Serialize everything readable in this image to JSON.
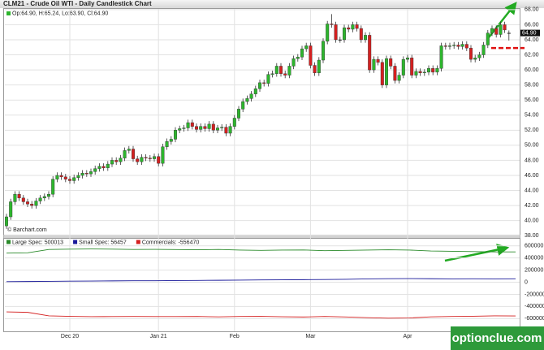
{
  "chart_data": [
    {
      "type": "candlestick",
      "title": "CLM21 - Crude Oil WTI - Daily Candlestick Chart",
      "ohlc_legend": "Op:64.90, H:65.24, Lo:63.90, Cl:64.90",
      "source": "© Barchart.com",
      "up_color": "#2db52d",
      "down_color": "#d42020",
      "categories": [
        null,
        null,
        null,
        null,
        null,
        null,
        null,
        null,
        null,
        null,
        null,
        null,
        null,
        null,
        null,
        "Dec 20",
        null,
        null,
        null,
        null,
        null,
        null,
        null,
        null,
        null,
        null,
        null,
        null,
        null,
        null,
        null,
        null,
        null,
        null,
        null,
        null,
        "Jan 21",
        null,
        null,
        null,
        null,
        null,
        null,
        null,
        null,
        null,
        null,
        null,
        null,
        null,
        null,
        null,
        null,
        null,
        "Feb",
        null,
        null,
        null,
        null,
        null,
        null,
        null,
        null,
        null,
        null,
        null,
        null,
        null,
        null,
        null,
        null,
        null,
        "Mar",
        null,
        null,
        null,
        null,
        null,
        null,
        null,
        null,
        null,
        null,
        null,
        null,
        null,
        null,
        null,
        null,
        null,
        null,
        null,
        null,
        null,
        null,
        "Apr",
        null,
        null,
        null,
        null,
        null,
        null,
        null,
        null,
        null,
        null,
        null,
        null,
        null,
        null,
        null,
        null,
        null,
        null,
        null,
        null,
        null,
        null,
        null,
        null
      ],
      "ohlc": [
        [
          39.3,
          40.9,
          38.9,
          40.5
        ],
        [
          40.5,
          42.9,
          40.1,
          42.5
        ],
        [
          42.5,
          43.9,
          42.1,
          43.5
        ],
        [
          43.5,
          43.9,
          42.6,
          43.0
        ],
        [
          43.0,
          43.4,
          42.1,
          42.5
        ],
        [
          42.5,
          42.9,
          41.8,
          42.2
        ],
        [
          42.2,
          42.6,
          41.6,
          42.0
        ],
        [
          42.0,
          43.0,
          41.6,
          42.6
        ],
        [
          42.6,
          43.4,
          42.2,
          43.0
        ],
        [
          43.0,
          43.6,
          42.6,
          43.2
        ],
        [
          43.2,
          43.9,
          42.8,
          43.5
        ],
        [
          43.5,
          45.9,
          43.1,
          45.5
        ],
        [
          45.5,
          46.4,
          45.1,
          46.0
        ],
        [
          46.0,
          46.4,
          45.4,
          45.8
        ],
        [
          45.8,
          46.2,
          45.1,
          45.5
        ],
        [
          45.5,
          45.9,
          44.9,
          45.3
        ],
        [
          45.3,
          46.1,
          44.9,
          45.7
        ],
        [
          45.7,
          46.4,
          45.3,
          46.0
        ],
        [
          46.0,
          46.7,
          45.6,
          46.3
        ],
        [
          46.3,
          46.7,
          45.8,
          46.2
        ],
        [
          46.2,
          46.9,
          45.8,
          46.5
        ],
        [
          46.5,
          47.3,
          46.1,
          46.9
        ],
        [
          46.9,
          47.6,
          46.5,
          47.2
        ],
        [
          47.2,
          47.6,
          46.6,
          47.0
        ],
        [
          47.0,
          47.9,
          46.6,
          47.5
        ],
        [
          47.5,
          48.4,
          47.1,
          48.0
        ],
        [
          48.0,
          48.4,
          47.4,
          47.8
        ],
        [
          47.8,
          48.7,
          47.4,
          48.3
        ],
        [
          48.3,
          49.7,
          47.9,
          49.3
        ],
        [
          49.3,
          49.9,
          48.9,
          49.5
        ],
        [
          49.5,
          49.9,
          47.8,
          48.2
        ],
        [
          48.2,
          48.6,
          47.4,
          47.8
        ],
        [
          47.8,
          48.8,
          47.4,
          48.4
        ],
        [
          48.4,
          48.8,
          47.9,
          48.3
        ],
        [
          48.3,
          48.7,
          47.8,
          48.2
        ],
        [
          48.2,
          48.9,
          47.8,
          48.5
        ],
        [
          48.5,
          48.9,
          47.2,
          47.6
        ],
        [
          47.6,
          50.2,
          47.2,
          49.8
        ],
        [
          49.8,
          50.9,
          49.4,
          50.5
        ],
        [
          50.5,
          51.2,
          50.1,
          50.8
        ],
        [
          50.8,
          52.4,
          50.4,
          52.0
        ],
        [
          52.0,
          52.6,
          51.6,
          52.2
        ],
        [
          52.2,
          52.7,
          51.8,
          52.3
        ],
        [
          52.3,
          53.4,
          51.9,
          53.0
        ],
        [
          53.0,
          53.4,
          52.1,
          52.5
        ],
        [
          52.5,
          52.9,
          51.7,
          52.1
        ],
        [
          52.1,
          52.9,
          51.7,
          52.5
        ],
        [
          52.5,
          52.9,
          51.8,
          52.2
        ],
        [
          52.2,
          53.2,
          51.8,
          52.8
        ],
        [
          52.8,
          53.2,
          51.6,
          52.0
        ],
        [
          52.0,
          52.7,
          51.6,
          52.3
        ],
        [
          52.3,
          52.8,
          51.9,
          52.4
        ],
        [
          52.4,
          52.8,
          51.2,
          51.6
        ],
        [
          51.6,
          52.9,
          51.2,
          52.5
        ],
        [
          52.5,
          54.0,
          52.1,
          53.6
        ],
        [
          53.6,
          55.2,
          53.2,
          54.8
        ],
        [
          54.8,
          56.2,
          54.4,
          55.8
        ],
        [
          55.8,
          56.6,
          55.4,
          56.2
        ],
        [
          56.2,
          57.2,
          55.8,
          56.8
        ],
        [
          56.8,
          57.9,
          56.4,
          57.5
        ],
        [
          57.5,
          58.7,
          57.1,
          58.3
        ],
        [
          58.3,
          58.7,
          57.8,
          58.2
        ],
        [
          58.2,
          59.8,
          57.8,
          59.4
        ],
        [
          59.4,
          59.9,
          59.0,
          59.5
        ],
        [
          59.5,
          60.9,
          59.1,
          60.5
        ],
        [
          60.5,
          60.9,
          59.1,
          59.5
        ],
        [
          59.5,
          59.9,
          58.9,
          59.3
        ],
        [
          59.3,
          60.9,
          58.9,
          60.5
        ],
        [
          60.5,
          61.9,
          60.1,
          61.5
        ],
        [
          61.5,
          62.1,
          61.1,
          61.7
        ],
        [
          61.7,
          63.2,
          61.3,
          62.8
        ],
        [
          62.8,
          63.6,
          62.4,
          63.2
        ],
        [
          63.2,
          63.6,
          60.2,
          60.6
        ],
        [
          60.6,
          61.0,
          59.2,
          59.6
        ],
        [
          59.6,
          61.7,
          59.2,
          61.3
        ],
        [
          61.3,
          64.2,
          60.9,
          63.8
        ],
        [
          63.8,
          66.5,
          63.4,
          66.1
        ],
        [
          66.1,
          67.4,
          65.6,
          66.0
        ],
        [
          66.0,
          66.4,
          63.6,
          64.0
        ],
        [
          64.0,
          64.4,
          63.6,
          64.0
        ],
        [
          64.0,
          66.0,
          63.6,
          65.6
        ],
        [
          65.6,
          66.0,
          65.0,
          65.4
        ],
        [
          65.4,
          66.4,
          65.0,
          66.0
        ],
        [
          66.0,
          66.4,
          65.1,
          65.5
        ],
        [
          65.5,
          65.9,
          63.6,
          64.0
        ],
        [
          64.0,
          65.0,
          63.6,
          64.6
        ],
        [
          64.6,
          65.0,
          59.6,
          60.0
        ],
        [
          60.0,
          61.8,
          59.6,
          61.4
        ],
        [
          61.4,
          61.8,
          60.6,
          61.0
        ],
        [
          61.0,
          61.4,
          57.6,
          58.0
        ],
        [
          58.0,
          61.9,
          57.6,
          61.5
        ],
        [
          61.5,
          61.9,
          60.1,
          60.5
        ],
        [
          60.5,
          60.9,
          58.2,
          58.6
        ],
        [
          58.6,
          59.7,
          58.2,
          59.3
        ],
        [
          59.3,
          61.8,
          58.9,
          61.4
        ],
        [
          61.4,
          62.0,
          61.0,
          61.6
        ],
        [
          61.6,
          62.0,
          58.9,
          59.3
        ],
        [
          59.3,
          60.2,
          58.9,
          59.8
        ],
        [
          59.8,
          60.2,
          59.2,
          59.6
        ],
        [
          59.6,
          60.1,
          59.2,
          59.7
        ],
        [
          59.7,
          60.6,
          59.3,
          60.2
        ],
        [
          60.2,
          60.6,
          59.3,
          59.7
        ],
        [
          59.7,
          60.6,
          59.3,
          60.2
        ],
        [
          60.2,
          63.6,
          59.8,
          63.2
        ],
        [
          63.2,
          63.6,
          62.7,
          63.1
        ],
        [
          63.1,
          63.6,
          62.7,
          63.2
        ],
        [
          63.2,
          63.7,
          62.8,
          63.3
        ],
        [
          63.3,
          63.7,
          62.7,
          63.1
        ],
        [
          63.1,
          63.8,
          62.7,
          63.4
        ],
        [
          63.4,
          63.8,
          62.5,
          62.9
        ],
        [
          62.9,
          63.3,
          61.0,
          61.4
        ],
        [
          61.4,
          62.0,
          61.0,
          61.6
        ],
        [
          61.6,
          62.4,
          61.2,
          62.0
        ],
        [
          62.0,
          63.7,
          61.6,
          63.3
        ],
        [
          63.3,
          65.3,
          62.9,
          64.9
        ],
        [
          64.9,
          65.9,
          64.5,
          65.5
        ],
        [
          65.5,
          65.9,
          64.3,
          64.7
        ],
        [
          64.7,
          66.4,
          64.3,
          66.0
        ],
        [
          66.0,
          66.4,
          64.9,
          65.3
        ],
        [
          64.9,
          65.24,
          63.9,
          64.9
        ]
      ],
      "price_tag": {
        "value": 64.9,
        "label": "64.90"
      },
      "level": {
        "value": 62.9,
        "color": "#e01010"
      },
      "ylim": [
        37.7,
        68.2
      ],
      "yticks": [
        {
          "value": 38,
          "label": "38.00"
        },
        {
          "value": 40,
          "label": "40.00"
        },
        {
          "value": 42,
          "label": "42.00"
        },
        {
          "value": 44,
          "label": "44.00"
        },
        {
          "value": 46,
          "label": "46.00"
        },
        {
          "value": 48,
          "label": "48.00"
        },
        {
          "value": 50,
          "label": "50.00"
        },
        {
          "value": 52,
          "label": "52.00"
        },
        {
          "value": 54,
          "label": "54.00"
        },
        {
          "value": 56,
          "label": "56.00"
        },
        {
          "value": 58,
          "label": "58.00"
        },
        {
          "value": 60,
          "label": "60.00"
        },
        {
          "value": 62,
          "label": "62.00"
        },
        {
          "value": 64,
          "label": "64.00"
        },
        {
          "value": 66,
          "label": "66.00"
        },
        {
          "value": 68,
          "label": "68.00"
        }
      ],
      "grid": true
    },
    {
      "type": "line",
      "series": [
        {
          "name": "Large Spec: 500013",
          "color": "#2a8a2a",
          "values": [
            480000,
            485000,
            540000,
            545000,
            548000,
            545000,
            540000,
            542000,
            538000,
            535000,
            540000,
            530000,
            525000,
            530000,
            532000,
            520000,
            525000,
            530000,
            535000,
            530000,
            515000,
            510000,
            505000,
            500000,
            500013
          ]
        },
        {
          "name": "Small Spec: 56457",
          "color": "#1a1a9a",
          "values": [
            10000,
            12000,
            15000,
            18000,
            20000,
            22000,
            25000,
            24000,
            28000,
            30000,
            32000,
            35000,
            38000,
            40000,
            42000,
            45000,
            48000,
            55000,
            58000,
            60000,
            57000,
            55000,
            56000,
            55000,
            56457
          ]
        },
        {
          "name": "Commercials: -556470",
          "color": "#d42020",
          "values": [
            -490000,
            -497000,
            -555000,
            -563000,
            -568000,
            -567000,
            -565000,
            -566000,
            -566000,
            -565000,
            -572000,
            -565000,
            -563000,
            -570000,
            -574000,
            -565000,
            -573000,
            -585000,
            -593000,
            -590000,
            -572000,
            -565000,
            -561000,
            -555000,
            -556470
          ]
        }
      ],
      "ylim": [
        -810000,
        730000
      ],
      "yticks": [
        600000,
        400000,
        200000,
        0,
        -200000,
        -400000,
        -600000
      ],
      "grid": true
    },
    {
      "watermark": "optionclue.com"
    }
  ]
}
